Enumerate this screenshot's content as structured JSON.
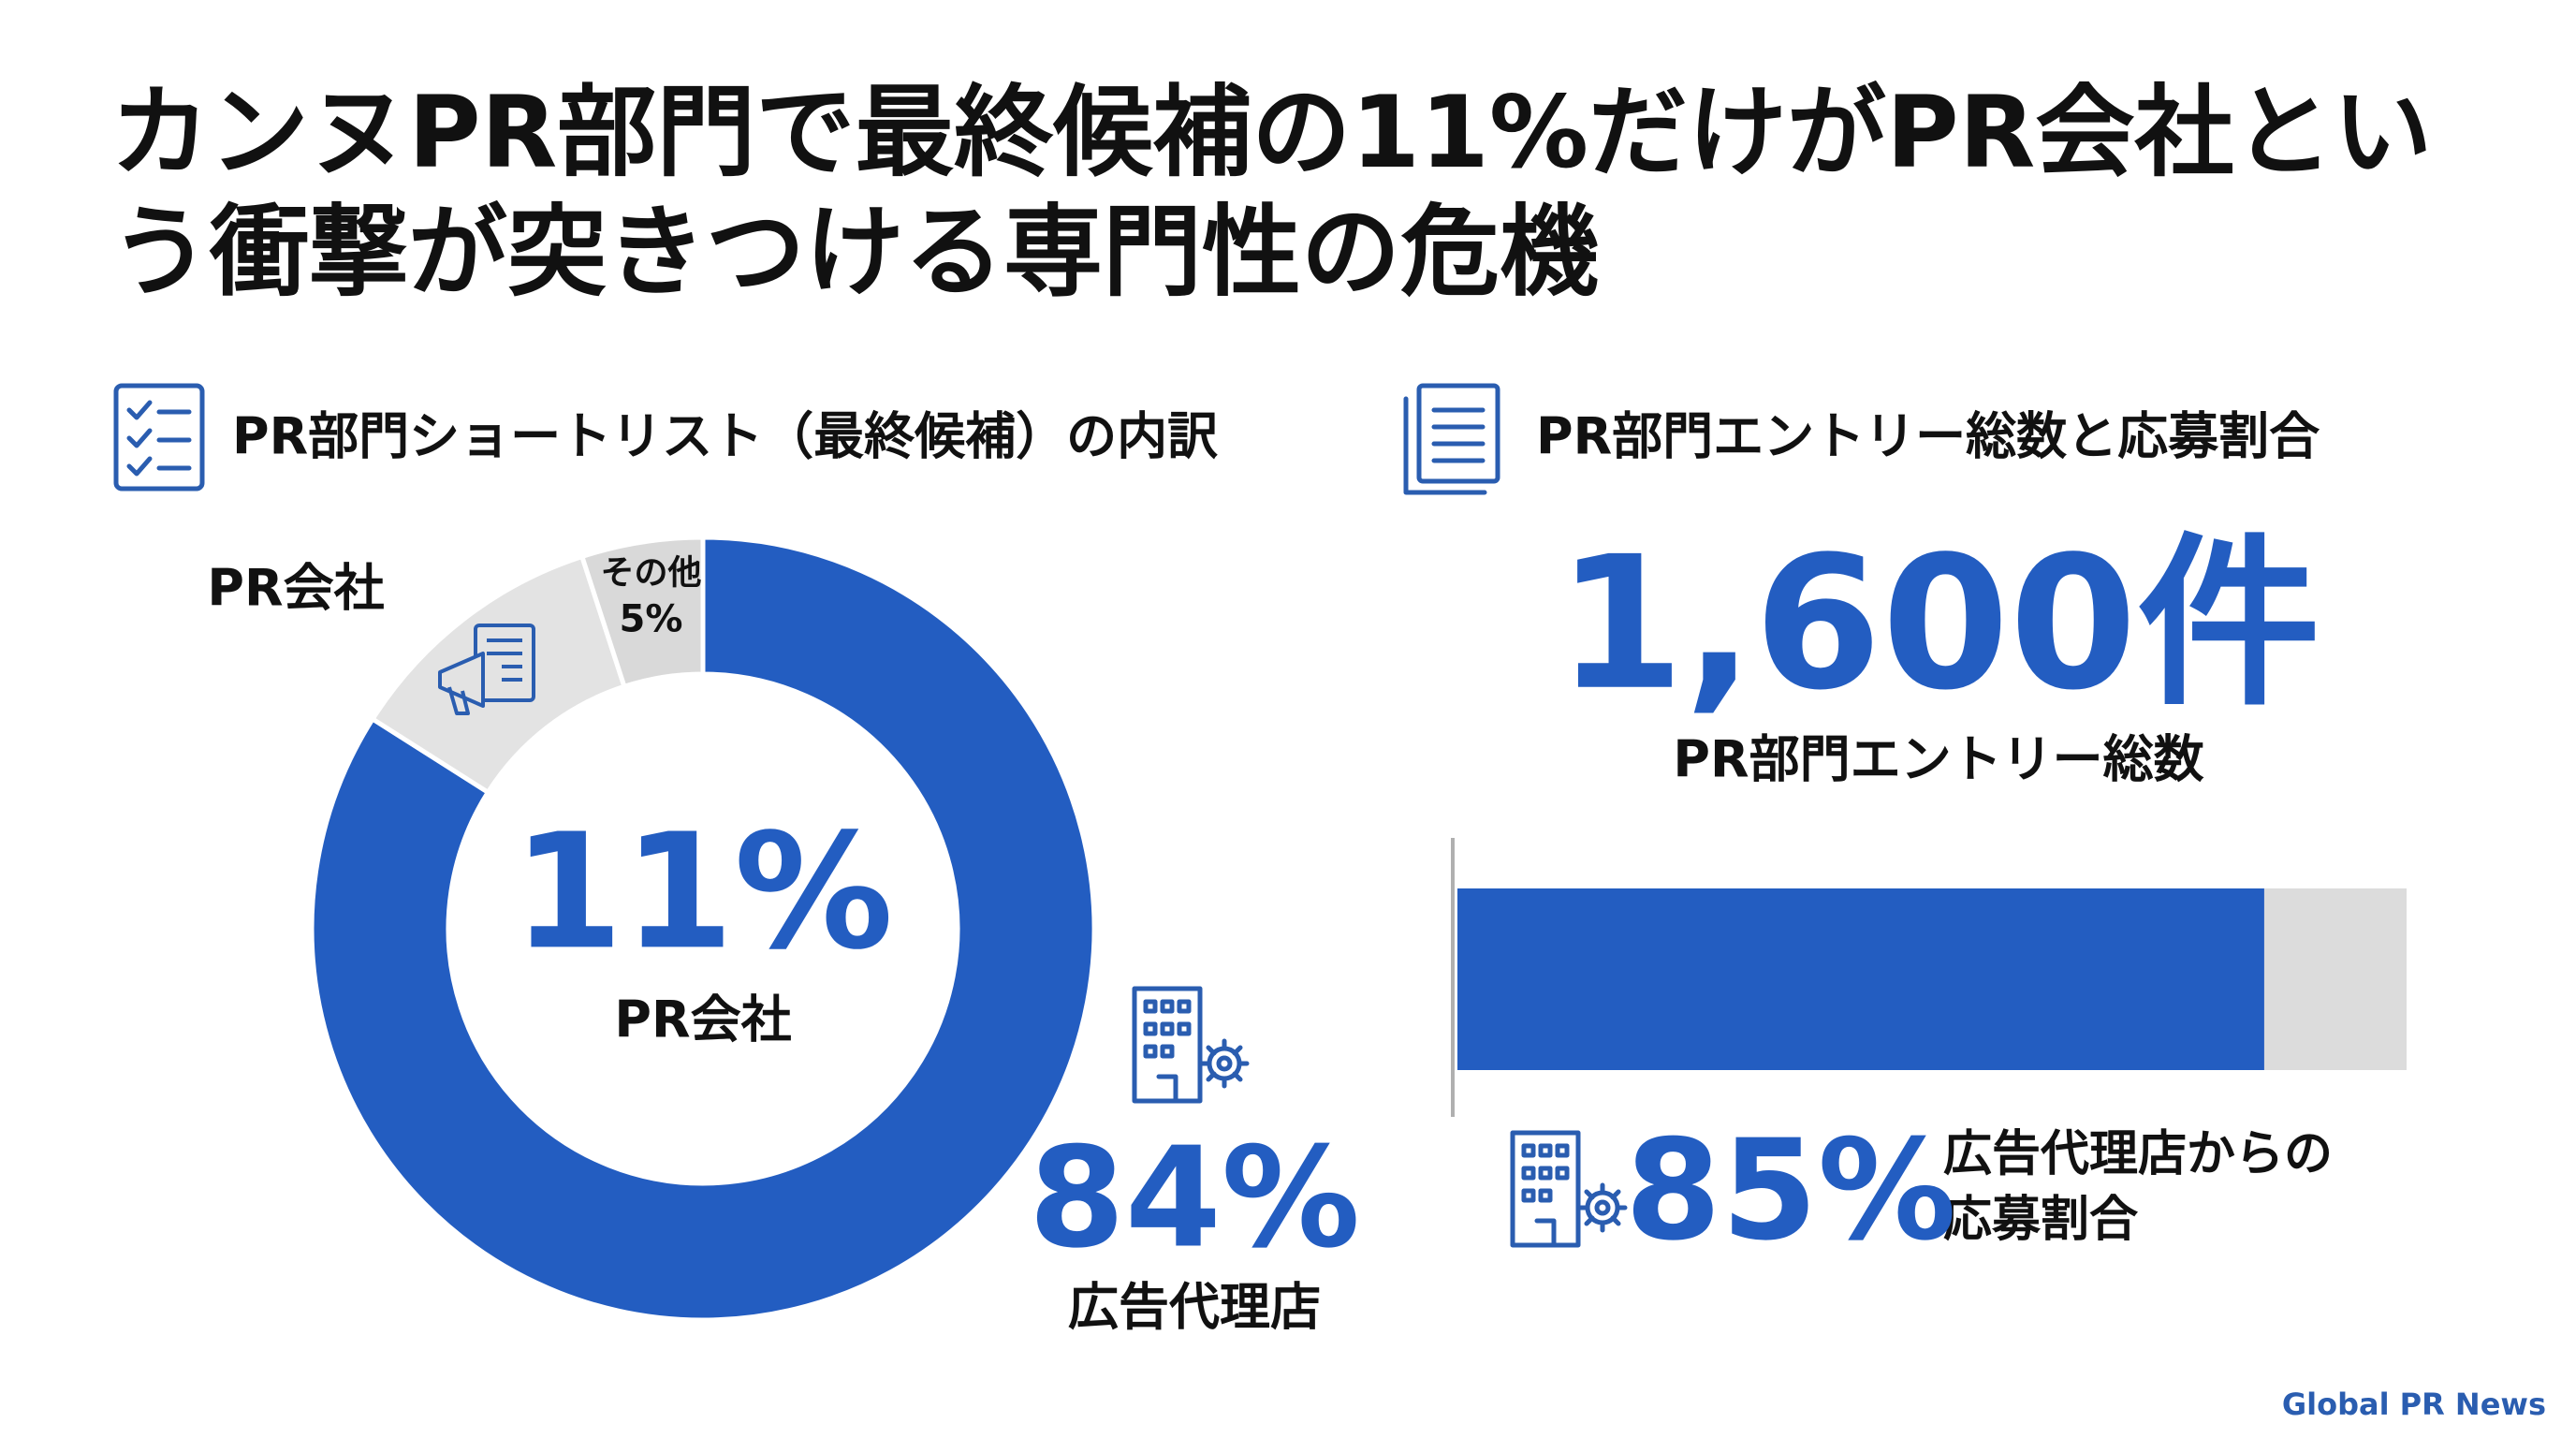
{
  "title": "カンヌPR部門で最終候補の11%だけがPR会社という衝撃が突きつける専門性の危機",
  "footer": "Global PR News",
  "chart_data": [
    {
      "type": "donut",
      "subtitle": "PR部門ショートリスト（最終候補）の内訳",
      "categories": [
        "広告代理店",
        "PR会社",
        "その他"
      ],
      "values": [
        84,
        11,
        5
      ],
      "value_labels": [
        "84%",
        "11%",
        "5%"
      ],
      "colors": [
        "#235dc1",
        "#e3e3e3",
        "#d9d9d9"
      ]
    },
    {
      "type": "bar",
      "subtitle": "PR部門エントリー総数と応募割合",
      "total": {
        "value": 1600,
        "label": "1,600件"
      },
      "total_caption": "PR部門エントリー総数",
      "categories": [
        "広告代理店からの応募割合"
      ],
      "values": [
        85
      ],
      "value_labels": [
        "85%"
      ],
      "color": "#235dc1",
      "track_color": "#dcdcdc",
      "xlim": [
        0,
        100
      ]
    }
  ]
}
